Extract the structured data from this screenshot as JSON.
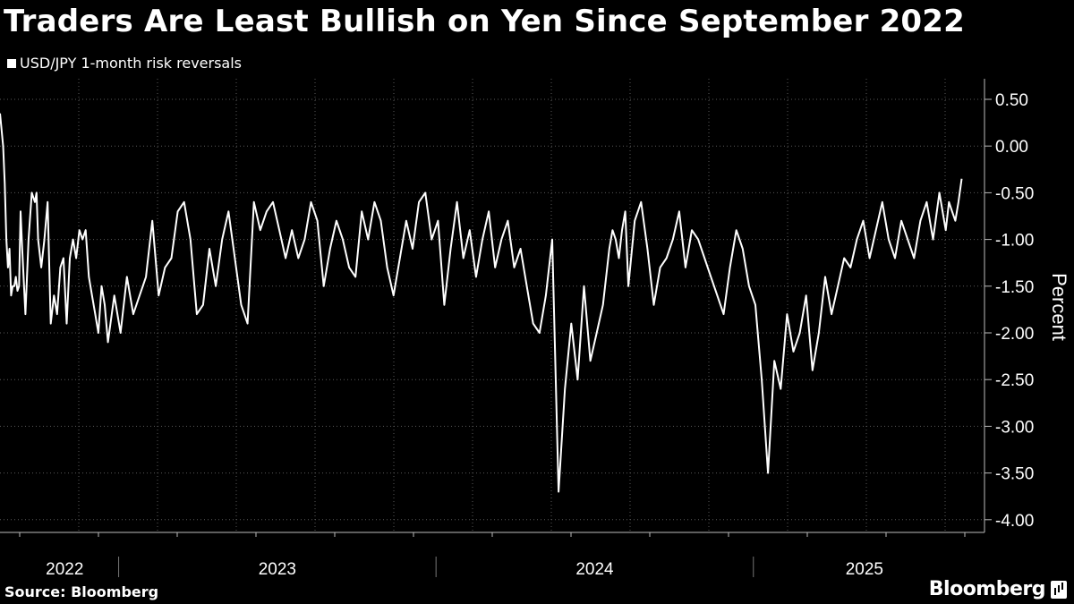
{
  "chart_data": {
    "type": "line",
    "title": "Traders Are Least Bullish on Yen Since September 2022",
    "legend": [
      "USD/JPY 1-month risk reversals"
    ],
    "ylabel": "Percent",
    "xlabel": "",
    "ylim": [
      -4.0,
      0.75
    ],
    "yticks": [
      "0.50",
      "0.00",
      "-0.50",
      "-1.00",
      "-1.50",
      "-2.00",
      "-2.50",
      "-3.00",
      "-3.50",
      "-4.00"
    ],
    "ytick_values": [
      0.5,
      0.0,
      -0.5,
      -1.0,
      -1.5,
      -2.0,
      -2.5,
      -3.0,
      -3.5,
      -4.0
    ],
    "xlim": [
      2022.66,
      2025.7
    ],
    "xtick_labels": [
      {
        "label": "2022",
        "center": 2022.83
      },
      {
        "label": "2023",
        "center": 2023.5
      },
      {
        "label": "2024",
        "center": 2024.5
      },
      {
        "label": "2025",
        "center": 2025.35
      }
    ],
    "year_boundaries": [
      2023.0,
      2024.0,
      2025.0
    ],
    "grid": true,
    "series": [
      {
        "name": "USD/JPY 1-month risk reversals",
        "color": "#ffffff",
        "x": [
          2022.66,
          2022.67,
          2022.675,
          2022.68,
          2022.685,
          2022.69,
          2022.695,
          2022.7,
          2022.705,
          2022.71,
          2022.715,
          2022.72,
          2022.725,
          2022.73,
          2022.74,
          2022.75,
          2022.76,
          2022.77,
          2022.775,
          2022.78,
          2022.79,
          2022.8,
          2022.81,
          2022.82,
          2022.83,
          2022.84,
          2022.85,
          2022.86,
          2022.87,
          2022.88,
          2022.89,
          2022.9,
          2022.91,
          2022.92,
          2022.93,
          2022.94,
          2022.95,
          2022.96,
          2022.97,
          2022.98,
          2022.99,
          2023.0,
          2023.02,
          2023.04,
          2023.06,
          2023.08,
          2023.1,
          2023.12,
          2023.14,
          2023.16,
          2023.18,
          2023.2,
          2023.22,
          2023.24,
          2023.26,
          2023.28,
          2023.3,
          2023.32,
          2023.34,
          2023.36,
          2023.38,
          2023.4,
          2023.42,
          2023.44,
          2023.46,
          2023.48,
          2023.5,
          2023.52,
          2023.54,
          2023.56,
          2023.58,
          2023.6,
          2023.62,
          2023.64,
          2023.66,
          2023.68,
          2023.7,
          2023.72,
          2023.74,
          2023.76,
          2023.78,
          2023.8,
          2023.82,
          2023.84,
          2023.86,
          2023.88,
          2023.9,
          2023.92,
          2023.94,
          2023.96,
          2023.98,
          2024.0,
          2024.02,
          2024.04,
          2024.06,
          2024.08,
          2024.1,
          2024.12,
          2024.14,
          2024.16,
          2024.18,
          2024.2,
          2024.22,
          2024.24,
          2024.26,
          2024.28,
          2024.3,
          2024.32,
          2024.34,
          2024.36,
          2024.38,
          2024.4,
          2024.42,
          2024.44,
          2024.46,
          2024.48,
          2024.5,
          2024.52,
          2024.54,
          2024.56,
          2024.58,
          2024.59,
          2024.6,
          2024.61,
          2024.62,
          2024.63,
          2024.64,
          2024.66,
          2024.68,
          2024.7,
          2024.72,
          2024.74,
          2024.76,
          2024.78,
          2024.8,
          2024.82,
          2024.84,
          2024.86,
          2024.88,
          2024.9,
          2024.92,
          2024.94,
          2024.96,
          2024.98,
          2025.0,
          2025.02,
          2025.04,
          2025.06,
          2025.08,
          2025.1,
          2025.12,
          2025.14,
          2025.16,
          2025.18,
          2025.2,
          2025.22,
          2025.24,
          2025.26,
          2025.28,
          2025.3,
          2025.32,
          2025.34,
          2025.36,
          2025.38,
          2025.4,
          2025.42,
          2025.44,
          2025.46,
          2025.48,
          2025.5,
          2025.52,
          2025.54,
          2025.56,
          2025.58,
          2025.6,
          2025.62,
          2025.64,
          2025.65,
          2025.66,
          2025.67,
          2025.68,
          2025.69
        ],
        "values": [
          0.35,
          0.0,
          -0.4,
          -1.0,
          -1.3,
          -1.1,
          -1.6,
          -1.5,
          -1.5,
          -1.4,
          -1.55,
          -1.5,
          -0.7,
          -1.1,
          -1.8,
          -1.0,
          -0.5,
          -0.6,
          -0.5,
          -1.0,
          -1.3,
          -1.0,
          -0.6,
          -1.9,
          -1.6,
          -1.8,
          -1.3,
          -1.2,
          -1.9,
          -1.2,
          -1.0,
          -1.2,
          -0.9,
          -1.0,
          -0.9,
          -1.4,
          -1.6,
          -1.8,
          -2.0,
          -1.5,
          -1.7,
          -2.1,
          -1.6,
          -2.0,
          -1.4,
          -1.8,
          -1.6,
          -1.4,
          -0.8,
          -1.6,
          -1.3,
          -1.2,
          -0.7,
          -0.6,
          -1.0,
          -1.8,
          -1.7,
          -1.1,
          -1.5,
          -1.0,
          -0.7,
          -1.2,
          -1.7,
          -1.9,
          -0.6,
          -0.9,
          -0.7,
          -0.6,
          -0.9,
          -1.2,
          -0.9,
          -1.2,
          -1.0,
          -0.6,
          -0.8,
          -1.5,
          -1.1,
          -0.8,
          -1.0,
          -1.3,
          -1.4,
          -0.7,
          -1.0,
          -0.6,
          -0.8,
          -1.3,
          -1.6,
          -1.2,
          -0.8,
          -1.1,
          -0.6,
          -0.5,
          -1.0,
          -0.8,
          -1.7,
          -1.1,
          -0.6,
          -1.2,
          -0.9,
          -1.4,
          -1.0,
          -0.7,
          -1.3,
          -1.0,
          -0.8,
          -1.3,
          -1.1,
          -1.5,
          -1.9,
          -2.0,
          -1.6,
          -1.0,
          -3.7,
          -2.6,
          -1.9,
          -2.5,
          -1.5,
          -2.3,
          -2.0,
          -1.7,
          -1.1,
          -0.9,
          -1.0,
          -1.2,
          -0.9,
          -0.7,
          -1.5,
          -0.8,
          -0.6,
          -1.1,
          -1.7,
          -1.3,
          -1.2,
          -1.0,
          -0.7,
          -1.3,
          -0.9,
          -1.0,
          -1.2,
          -1.4,
          -1.6,
          -1.8,
          -1.3,
          -0.9,
          -1.1,
          -1.5,
          -1.7,
          -2.5,
          -3.5,
          -2.3,
          -2.6,
          -1.8,
          -2.2,
          -2.0,
          -1.6,
          -2.4,
          -2.0,
          -1.4,
          -1.8,
          -1.5,
          -1.2,
          -1.3,
          -1.0,
          -0.8,
          -1.2,
          -0.9,
          -0.6,
          -1.0,
          -1.2,
          -0.8,
          -1.0,
          -1.2,
          -0.8,
          -0.6,
          -1.0,
          -0.5,
          -0.9,
          -0.6,
          -0.7,
          -0.8,
          -0.6,
          -0.35
        ]
      }
    ],
    "source": "Source: Bloomberg",
    "logo": "Bloomberg"
  }
}
